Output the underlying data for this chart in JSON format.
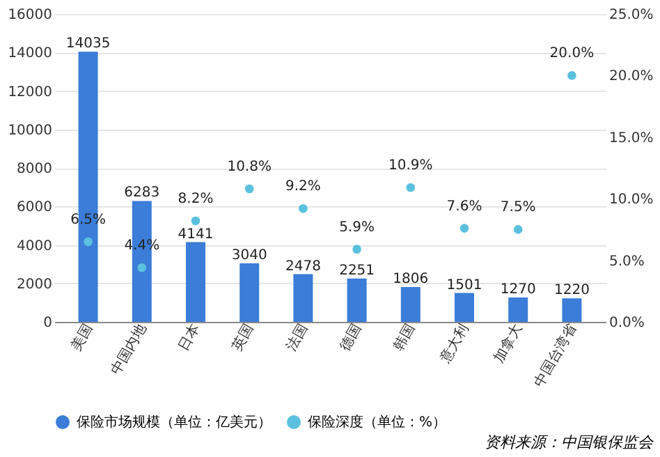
{
  "chart_data": {
    "type": "bar",
    "categories": [
      "美国",
      "中国内地",
      "日本",
      "英国",
      "法国",
      "德国",
      "韩国",
      "意大利",
      "加拿大",
      "中国台湾省"
    ],
    "series": [
      {
        "name": "保险市场规模（单位：亿美元）",
        "color": "#3b7dd8",
        "values": [
          14035,
          6283,
          4141,
          3040,
          2478,
          2251,
          1806,
          1501,
          1270,
          1220
        ],
        "value_labels": [
          "14035",
          "6283",
          "4141",
          "3040",
          "2478",
          "2251",
          "1806",
          "1501",
          "1270",
          "1220"
        ]
      },
      {
        "name": "保险深度（单位：%）",
        "type": "scatter",
        "axis": "y2",
        "color": "#5bc0de",
        "values": [
          6.5,
          4.4,
          8.2,
          10.8,
          9.2,
          5.9,
          10.9,
          7.6,
          7.5,
          20.0
        ],
        "value_labels": [
          "6.5%",
          "4.4%",
          "8.2%",
          "10.8%",
          "9.2%",
          "5.9%",
          "10.9%",
          "7.6%",
          "7.5%",
          "20.0%"
        ]
      }
    ],
    "ylim": [
      0,
      16000
    ],
    "yticks": [
      0,
      2000,
      4000,
      6000,
      8000,
      10000,
      12000,
      14000,
      16000
    ],
    "y2lim": [
      0,
      25
    ],
    "y2ticks": [
      {
        "value": 0,
        "label": "0.0%"
      },
      {
        "value": 5,
        "label": "5.0%"
      },
      {
        "value": 10,
        "label": "10.0%"
      },
      {
        "value": 15,
        "label": "15.0%"
      },
      {
        "value": 20,
        "label": "20.0%"
      },
      {
        "value": 25,
        "label": "25.0%"
      }
    ],
    "grid": "y",
    "legend": "bottom",
    "marker": "circle",
    "annotations": [
      "资料来源：中国银保监会"
    ]
  }
}
